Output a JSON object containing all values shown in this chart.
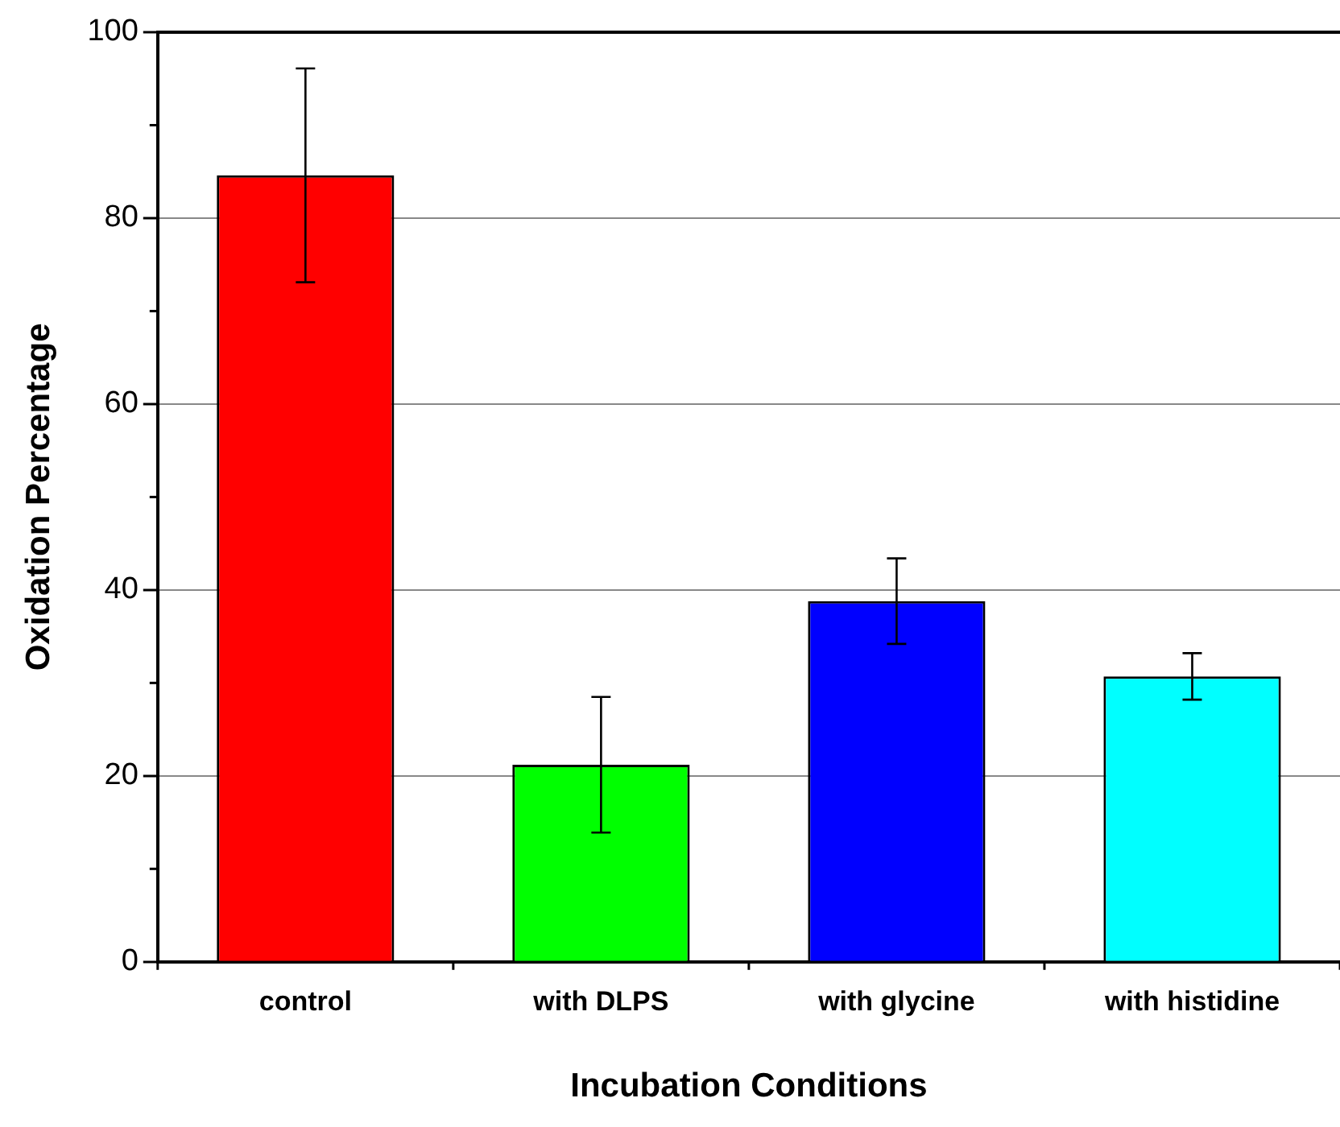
{
  "chart_data": {
    "type": "bar",
    "xlabel": "Incubation Conditions",
    "ylabel": "Oxidation Percentage",
    "categories": [
      "control",
      "with DLPS",
      "with glycine",
      "with histidine"
    ],
    "values": [
      84.6,
      21.2,
      38.8,
      30.7
    ],
    "colors": [
      "#ff0000",
      "#00ff00",
      "#0000ff",
      "#00ffff"
    ],
    "errors": [
      11.5,
      7.3,
      4.6,
      2.5
    ],
    "ylim": [
      0,
      100
    ],
    "yticks": [
      0,
      20,
      40,
      60,
      80,
      100
    ],
    "grid": "y",
    "legend": false
  }
}
